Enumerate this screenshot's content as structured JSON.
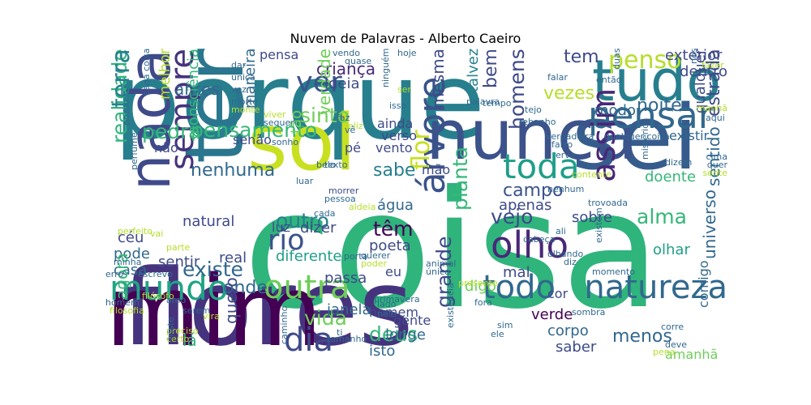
{
  "title": "Nuvem de Palavras - Alberto Caeiro",
  "palette": [
    "#440154",
    "#482878",
    "#3e4989",
    "#31688e",
    "#26828e",
    "#1f9e89",
    "#35b779",
    "#6ece58",
    "#b5de2b",
    "#fde725"
  ],
  "words": [
    {
      "text": "coisa",
      "c": "#2fb47c"
    },
    {
      "text": "flores",
      "c": "#46337e"
    },
    {
      "text": "porque",
      "c": "#277f8e"
    },
    {
      "text": "mim",
      "c": "#440154"
    },
    {
      "text": "sei",
      "c": "#365c8d"
    },
    {
      "text": "ter",
      "c": "#2a768e"
    },
    {
      "text": "sol",
      "c": "#c8e020"
    },
    {
      "text": "nunca",
      "c": "#3b528b"
    },
    {
      "text": "tudo",
      "c": "#277f8e"
    },
    {
      "text": "nada",
      "c": "#3e4a89"
    },
    {
      "text": "pensar",
      "c": "#31688e"
    },
    {
      "text": "natureza",
      "c": "#31688e"
    },
    {
      "text": "toda",
      "c": "#1f9e89"
    },
    {
      "text": "sempre",
      "c": "#46337e"
    },
    {
      "text": "mundo",
      "c": "#20a486"
    },
    {
      "text": "outra",
      "c": "#6ece58"
    },
    {
      "text": "todo",
      "c": "#31688e"
    },
    {
      "text": "árvore",
      "c": "#3b528b"
    },
    {
      "text": "dia",
      "c": "#3e4a89"
    },
    {
      "text": "olho",
      "c": "#482878"
    },
    {
      "text": "rio",
      "c": "#3b528b"
    },
    {
      "text": "ver",
      "c": "#3b528b"
    },
    {
      "text": "assim",
      "c": "#482878"
    },
    {
      "text": "penso",
      "c": "#b5de2b"
    },
    {
      "text": "realidade",
      "c": "#2fb47c"
    },
    {
      "text": "terra",
      "c": "#277f8e"
    },
    {
      "text": "pensamento",
      "c": "#35b779"
    },
    {
      "text": "sinto",
      "c": "#6ece58"
    },
    {
      "text": "existe",
      "c": "#31688e"
    },
    {
      "text": "homens",
      "c": "#3e4a89"
    },
    {
      "text": "vezes",
      "c": "#b5de2b"
    },
    {
      "text": "noite",
      "c": "#31688e"
    },
    {
      "text": "estrada",
      "c": "#3e4a89"
    },
    {
      "text": "pedra",
      "c": "#35b779"
    },
    {
      "text": "criança",
      "c": "#482878"
    },
    {
      "text": "bem",
      "c": "#3e4a89"
    },
    {
      "text": "tem",
      "c": "#3e4a89"
    },
    {
      "text": "mesma",
      "c": "#3e4a89"
    },
    {
      "text": "talvez",
      "c": "#26828e"
    },
    {
      "text": "flor",
      "c": "#c8e020"
    },
    {
      "text": "sabe",
      "c": "#277f8e"
    },
    {
      "text": "campo",
      "c": "#3b528b"
    },
    {
      "text": "vejo",
      "c": "#3e4a89"
    },
    {
      "text": "alma",
      "c": "#35b779"
    },
    {
      "text": "sentido",
      "c": "#31688e"
    },
    {
      "text": "planta",
      "c": "#35b779"
    },
    {
      "text": "têm",
      "c": "#440154"
    },
    {
      "text": "outro",
      "c": "#277f8e"
    },
    {
      "text": "vida",
      "c": "#6ece58"
    },
    {
      "text": "deus",
      "c": "#35b779"
    },
    {
      "text": "onde",
      "c": "#31688e"
    },
    {
      "text": "grande",
      "c": "#3e4a89"
    },
    {
      "text": "menos",
      "c": "#31688e"
    },
    {
      "text": "universo",
      "c": "#31688e"
    },
    {
      "text": "quero",
      "c": "#3e4a89"
    },
    {
      "text": "nenhuma",
      "c": "#31688e"
    },
    {
      "text": "antes",
      "c": "#31688e"
    },
    {
      "text": "verdade",
      "c": "#6ece58"
    },
    {
      "text": "maneira",
      "c": "#31688e"
    },
    {
      "text": "ideia",
      "c": "#3e4a89"
    },
    {
      "text": "consciência",
      "c": "#35b779"
    },
    {
      "text": "melhor",
      "c": "#b5de2b"
    },
    {
      "text": "exterior",
      "c": "#3e4a89"
    },
    {
      "text": "dentro",
      "c": "#3e4a89"
    },
    {
      "text": "modo",
      "c": "#31688e"
    },
    {
      "text": "qualquer",
      "c": "#3e4a89"
    },
    {
      "text": "doente",
      "c": "#35b779"
    },
    {
      "text": "natural",
      "c": "#3e4a89"
    },
    {
      "text": "sentir",
      "c": "#3e4a89"
    },
    {
      "text": "real",
      "c": "#3e4a89"
    },
    {
      "text": "diferente",
      "c": "#1f9e89"
    },
    {
      "text": "passa",
      "c": "#3e4a89"
    },
    {
      "text": "poeta",
      "c": "#3e4a89"
    },
    {
      "text": "apenas",
      "c": "#3e4a89"
    },
    {
      "text": "água",
      "c": "#31688e"
    },
    {
      "text": "dizer",
      "c": "#3e4a89"
    },
    {
      "text": "luz",
      "c": "#3e4a89"
    },
    {
      "text": "casa",
      "c": "#31688e"
    },
    {
      "text": "pode",
      "c": "#31688e"
    },
    {
      "text": "céu",
      "c": "#3e4a89"
    },
    {
      "text": "olhar",
      "c": "#1f9e89"
    },
    {
      "text": "sobre",
      "c": "#3e4a89"
    },
    {
      "text": "mão",
      "c": "#3e4a89"
    },
    {
      "text": "verde",
      "c": "#440154"
    },
    {
      "text": "corpo",
      "c": "#31688e"
    },
    {
      "text": "saber",
      "c": "#3e4a89"
    },
    {
      "text": "amanhã",
      "c": "#6ece58"
    },
    {
      "text": "isto",
      "c": "#31688e"
    },
    {
      "text": "longe",
      "c": "#31688e"
    },
    {
      "text": "gente",
      "c": "#3e4a89"
    },
    {
      "text": "homem",
      "c": "#3e4a89"
    },
    {
      "text": "janela",
      "c": "#31688e"
    },
    {
      "text": "digo",
      "c": "#6ece58"
    },
    {
      "text": "mal",
      "c": "#3e4a89"
    },
    {
      "text": "agora",
      "c": "#35b779"
    },
    {
      "text": "lá",
      "c": "#35b779"
    },
    {
      "text": "cor",
      "c": "#3e4a89"
    },
    {
      "text": "comigo",
      "c": "#31688e"
    },
    {
      "text": "existir",
      "c": "#31688e"
    },
    {
      "text": "senão",
      "c": "#3e4a89"
    },
    {
      "text": "não",
      "c": "#3e4a89"
    },
    {
      "text": "pé",
      "c": "#3e4a89"
    },
    {
      "text": "vento",
      "c": "#3e4a89"
    },
    {
      "text": "verso",
      "c": "#3e4a89"
    },
    {
      "text": "ainda",
      "c": "#3e4a89"
    },
    {
      "text": "tão",
      "c": "#6ece58"
    },
    {
      "text": "pensa",
      "c": "#3e4a89"
    },
    {
      "text": "eu",
      "c": "#3e4a89"
    },
    {
      "text": "sonho",
      "c": "#31688e"
    },
    {
      "text": "belo",
      "c": "#31688e"
    },
    {
      "text": "texto",
      "c": "#31688e"
    },
    {
      "text": "luar",
      "c": "#31688e"
    },
    {
      "text": "morrer",
      "c": "#3e4a89"
    },
    {
      "text": "pessoa",
      "c": "#31688e"
    },
    {
      "text": "aldeia",
      "c": "#b5de2b"
    },
    {
      "text": "querer",
      "c": "#31688e"
    },
    {
      "text": "poder",
      "c": "#b5de2b"
    },
    {
      "text": "animal",
      "c": "#31688e"
    },
    {
      "text": "único",
      "c": "#31688e"
    },
    {
      "text": "presente",
      "c": "#b5de2b"
    },
    {
      "text": "cabeça",
      "c": "#31688e"
    },
    {
      "text": "olhando",
      "c": "#31688e"
    },
    {
      "text": "diz",
      "c": "#31688e"
    },
    {
      "text": "momento",
      "c": "#31688e"
    },
    {
      "text": "existem",
      "c": "#31688e"
    },
    {
      "text": "trovoada",
      "c": "#31688e"
    },
    {
      "text": "ali",
      "c": "#31688e"
    },
    {
      "text": "nenhum",
      "c": "#31688e"
    },
    {
      "text": "contente",
      "c": "#b5de2b"
    },
    {
      "text": "erva",
      "c": "#31688e"
    },
    {
      "text": "falso",
      "c": "#31688e"
    },
    {
      "text": "verdadeira",
      "c": "#31688e"
    },
    {
      "text": "tejo",
      "c": "#31688e"
    },
    {
      "text": "rebanho",
      "c": "#31688e"
    },
    {
      "text": "palavra",
      "c": "#31688e"
    },
    {
      "text": "tempo",
      "c": "#31688e"
    },
    {
      "text": "falar",
      "c": "#31688e"
    },
    {
      "text": "então",
      "c": "#31688e"
    },
    {
      "text": "duas",
      "c": "#31688e"
    },
    {
      "text": "fazer",
      "c": "#b5de2b"
    },
    {
      "text": "nós",
      "c": "#31688e"
    },
    {
      "text": "manhã",
      "c": "#b5de2b"
    },
    {
      "text": "aqui",
      "c": "#31688e"
    },
    {
      "text": "dizem",
      "c": "#31688e"
    },
    {
      "text": "cima",
      "c": "#31688e"
    },
    {
      "text": "quer",
      "c": "#31688e"
    },
    {
      "text": "sente",
      "c": "#b5de2b"
    },
    {
      "text": "mistério",
      "c": "#31688e"
    },
    {
      "text": "qualquer coisa",
      "c": "#31688e"
    },
    {
      "text": "vendo",
      "c": "#31688e"
    },
    {
      "text": "quase",
      "c": "#31688e"
    },
    {
      "text": "hoje",
      "c": "#31688e"
    },
    {
      "text": "ninguém",
      "c": "#31688e"
    },
    {
      "text": "ser",
      "c": "#b5de2b"
    },
    {
      "text": "isso",
      "c": "#31688e"
    },
    {
      "text": "faz",
      "c": "#31688e"
    },
    {
      "text": "feliz",
      "c": "#b5de2b"
    },
    {
      "text": "vê",
      "c": "#31688e"
    },
    {
      "text": "dar",
      "c": "#31688e"
    },
    {
      "text": "única",
      "c": "#31688e"
    },
    {
      "text": "vez",
      "c": "#31688e"
    },
    {
      "text": "morte",
      "c": "#31688e"
    },
    {
      "text": "monte",
      "c": "#b5de2b"
    },
    {
      "text": "cada coisa",
      "c": "#31688e"
    },
    {
      "text": "viver",
      "c": "#b5de2b"
    },
    {
      "text": "sequer",
      "c": "#31688e"
    },
    {
      "text": "posso",
      "c": "#31688e"
    },
    {
      "text": "perfume",
      "c": "#31688e"
    },
    {
      "text": "perfeito",
      "c": "#b5de2b"
    },
    {
      "text": "vai",
      "c": "#b5de2b"
    },
    {
      "text": "parte",
      "c": "#b5de2b"
    },
    {
      "text": "minha",
      "c": "#31688e"
    },
    {
      "text": "erro",
      "c": "#31688e"
    },
    {
      "text": "escrevo",
      "c": "#31688e"
    },
    {
      "text": "filósofo",
      "c": "#b5de2b"
    },
    {
      "text": "amo",
      "c": "#31688e"
    },
    {
      "text": "homem",
      "c": "#31688e"
    },
    {
      "text": "filosofia",
      "c": "#b5de2b"
    },
    {
      "text": "serem",
      "c": "#31688e"
    },
    {
      "text": "vira",
      "c": "#b5de2b"
    },
    {
      "text": "preciso",
      "c": "#b5de2b"
    },
    {
      "text": "certo",
      "c": "#b5de2b"
    },
    {
      "text": "triste",
      "c": "#31688e"
    },
    {
      "text": "tamanho",
      "c": "#31688e"
    },
    {
      "text": "caminho",
      "c": "#31688e"
    },
    {
      "text": "existência",
      "c": "#31688e"
    },
    {
      "text": "fora",
      "c": "#31688e"
    },
    {
      "text": "lado",
      "c": "#31688e"
    },
    {
      "text": "nele",
      "c": "#31688e"
    },
    {
      "text": "ti",
      "c": "#31688e"
    },
    {
      "text": "sim",
      "c": "#31688e"
    },
    {
      "text": "ele",
      "c": "#31688e"
    },
    {
      "text": "sombra",
      "c": "#31688e"
    },
    {
      "text": "corre",
      "c": "#31688e"
    },
    {
      "text": "deve",
      "c": "#31688e"
    },
    {
      "text": "pena",
      "c": "#b5de2b"
    },
    {
      "text": "cada",
      "c": "#31688e"
    },
    {
      "text": "porta",
      "c": "#31688e"
    },
    {
      "text": "primavera",
      "c": "#31688e"
    }
  ]
}
